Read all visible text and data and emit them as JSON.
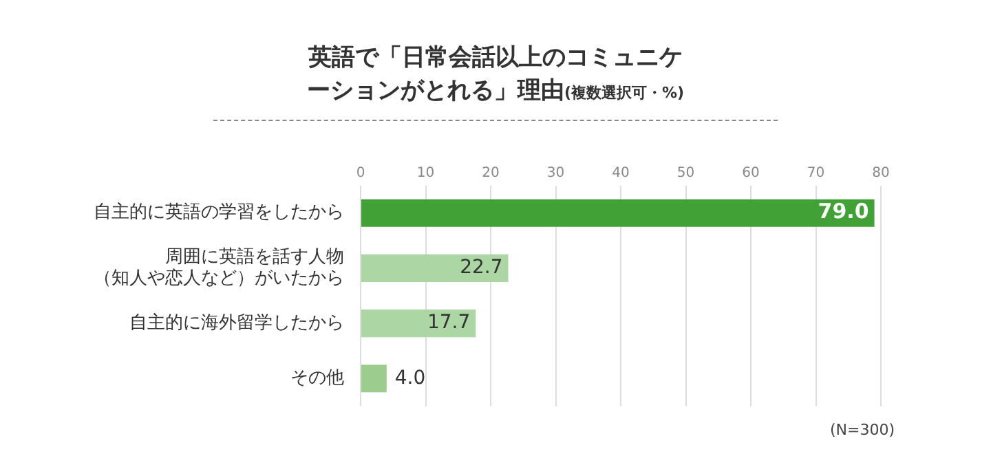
{
  "chart_data": {
    "type": "bar",
    "orientation": "horizontal",
    "title": "英語で「日常会話以上のコミュニケーションがとれる」理由",
    "subtitle": "(複数選択可・%)",
    "categories": [
      "自主的に英語の学習をしたから",
      "周囲に英語を話す人物（知人や恋人など）がいたから",
      "自主的に海外留学したから",
      "その他"
    ],
    "values": [
      79.0,
      22.7,
      17.7,
      4.0
    ],
    "value_labels": [
      "79.0",
      "22.7",
      "17.7",
      "4.0"
    ],
    "colors": [
      "#42a136",
      "#acd6a3",
      "#acd6a3",
      "#9ccd8f"
    ],
    "xlim": [
      0,
      80
    ],
    "xticks": [
      0,
      10,
      20,
      30,
      40,
      50,
      60,
      70,
      80
    ],
    "grid": "x",
    "legend": false,
    "annotations": [
      "(N=300)"
    ]
  }
}
